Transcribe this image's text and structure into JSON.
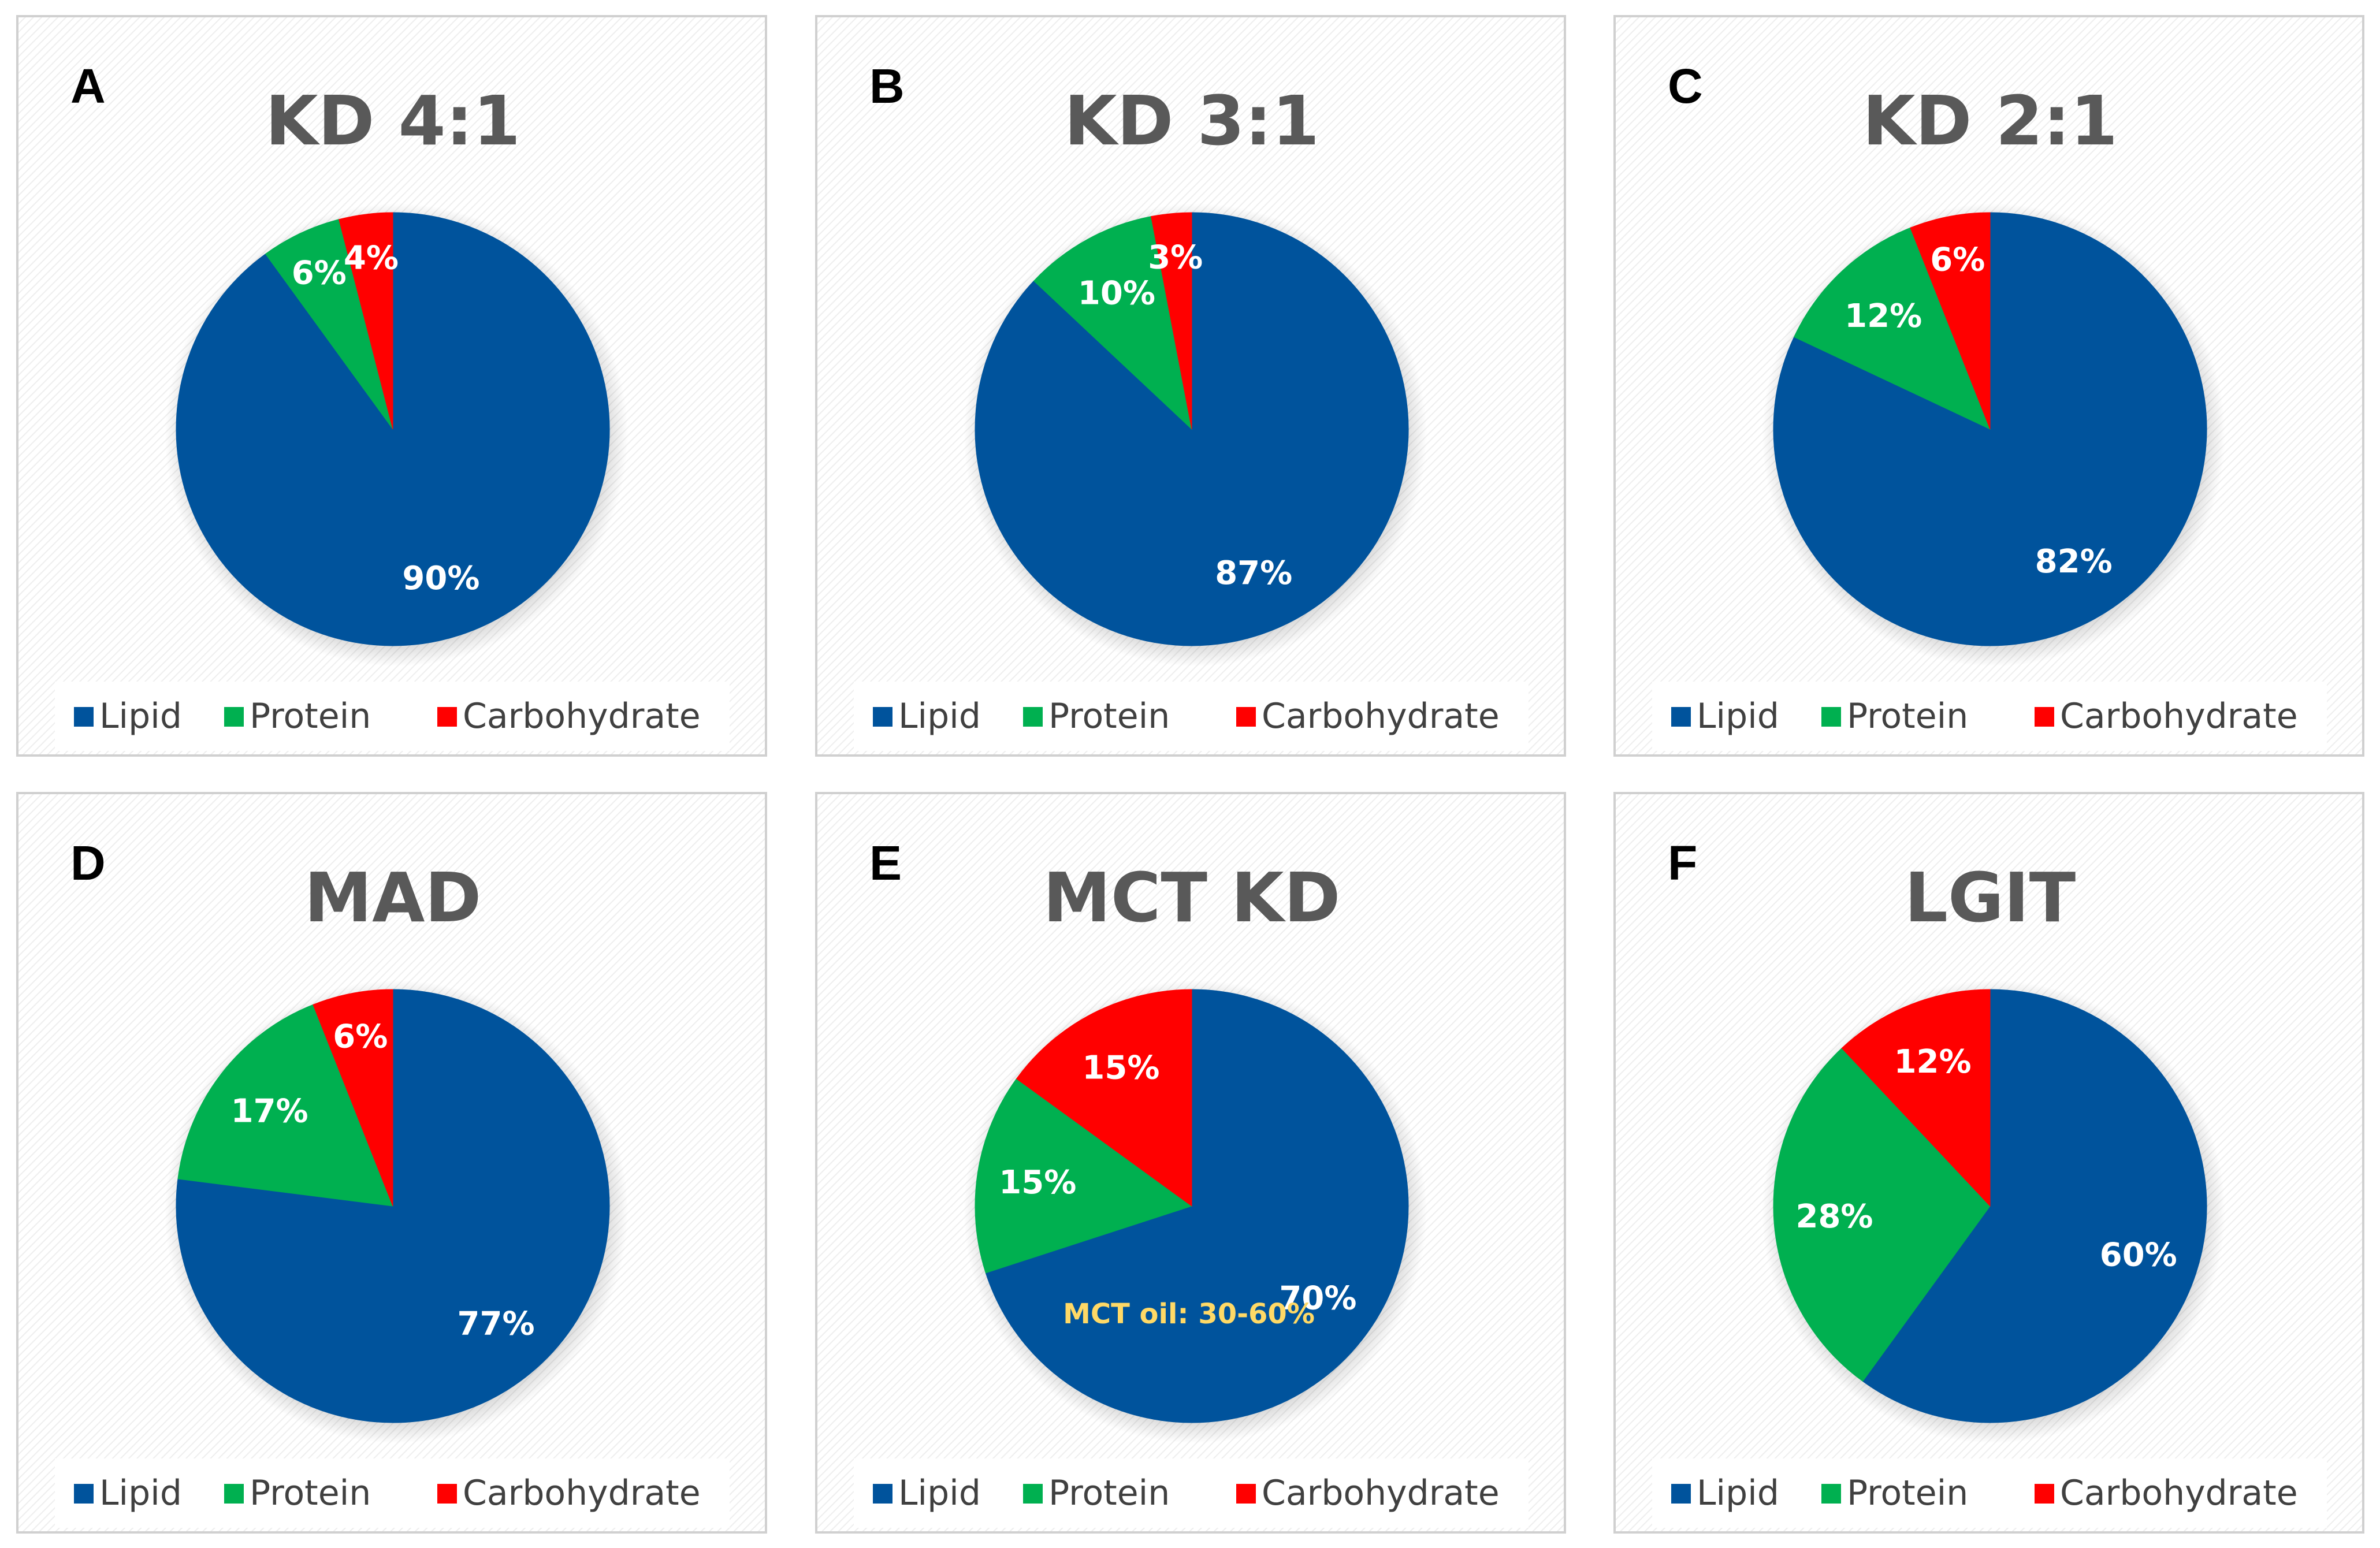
{
  "colors": {
    "Lipid": "#00539C",
    "Protein": "#00B050",
    "Carbohydrate": "#FF0000",
    "note": "#FFD966"
  },
  "chart_data": [
    {
      "type": "pie",
      "panel": "A",
      "title": "KD 4:1",
      "categories": [
        "Lipid",
        "Protein",
        "Carbohydrate"
      ],
      "values": [
        90,
        6,
        4
      ],
      "labels": [
        "90%",
        "6%",
        "4%"
      ],
      "legend": [
        "Lipid",
        "Protein",
        "Carbohydrate"
      ],
      "legend_position": "bottom"
    },
    {
      "type": "pie",
      "panel": "B",
      "title": "KD 3:1",
      "categories": [
        "Lipid",
        "Protein",
        "Carbohydrate"
      ],
      "values": [
        87,
        10,
        3
      ],
      "labels": [
        "87%",
        "10%",
        "3%"
      ],
      "legend": [
        "Lipid",
        "Protein",
        "Carbohydrate"
      ],
      "legend_position": "bottom"
    },
    {
      "type": "pie",
      "panel": "C",
      "title": "KD 2:1",
      "categories": [
        "Lipid",
        "Protein",
        "Carbohydrate"
      ],
      "values": [
        82,
        12,
        6
      ],
      "labels": [
        "82%",
        "12%",
        "6%"
      ],
      "legend": [
        "Lipid",
        "Protein",
        "Carbohydrate"
      ],
      "legend_position": "bottom"
    },
    {
      "type": "pie",
      "panel": "D",
      "title": "MAD",
      "categories": [
        "Lipid",
        "Protein",
        "Carbohydrate"
      ],
      "values": [
        77,
        17,
        6
      ],
      "labels": [
        "77%",
        "17%",
        "6%"
      ],
      "legend": [
        "Lipid",
        "Protein",
        "Carbohydrate"
      ],
      "legend_position": "bottom"
    },
    {
      "type": "pie",
      "panel": "E",
      "title": "MCT KD",
      "categories": [
        "Lipid",
        "Protein",
        "Carbohydrate"
      ],
      "values": [
        70,
        15,
        15
      ],
      "labels": [
        "70%",
        "15%",
        "15%"
      ],
      "annotation": "MCT oil: 30-60%",
      "legend": [
        "Lipid",
        "Protein",
        "Carbohydrate"
      ],
      "legend_position": "bottom"
    },
    {
      "type": "pie",
      "panel": "F",
      "title": "LGIT",
      "categories": [
        "Lipid",
        "Protein",
        "Carbohydrate"
      ],
      "values": [
        60,
        28,
        12
      ],
      "labels": [
        "60%",
        "28%",
        "12%"
      ],
      "legend": [
        "Lipid",
        "Protein",
        "Carbohydrate"
      ],
      "legend_position": "bottom"
    }
  ]
}
